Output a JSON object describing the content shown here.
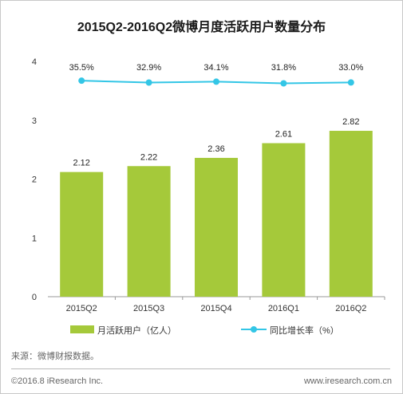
{
  "chart_data": {
    "type": "bar",
    "title": "2015Q2-2016Q2微博月度活跃用户数量分布",
    "categories": [
      "2015Q2",
      "2015Q3",
      "2015Q4",
      "2016Q1",
      "2016Q2"
    ],
    "series": [
      {
        "name": "月活跃用户（亿人）",
        "type": "bar",
        "values": [
          2.12,
          2.22,
          2.36,
          2.61,
          2.82
        ],
        "labels": [
          "2.12",
          "2.22",
          "2.36",
          "2.61",
          "2.82"
        ],
        "color": "#a5c93a"
      },
      {
        "name": "同比增长率（%）",
        "type": "line",
        "values": [
          35.5,
          32.9,
          34.1,
          31.8,
          33.0
        ],
        "labels": [
          "35.5%",
          "32.9%",
          "34.1%",
          "31.8%",
          "33.0%"
        ],
        "color": "#33c6e6"
      }
    ],
    "yticks": [
      "0",
      "1",
      "2",
      "3",
      "4"
    ],
    "ylim": [
      0,
      4
    ],
    "grid": false,
    "legend_position": "bottom"
  },
  "footer": {
    "source": "来源：微博财报数据。",
    "copyright": "©2016.8 iResearch Inc.",
    "website": "www.iresearch.com.cn"
  }
}
